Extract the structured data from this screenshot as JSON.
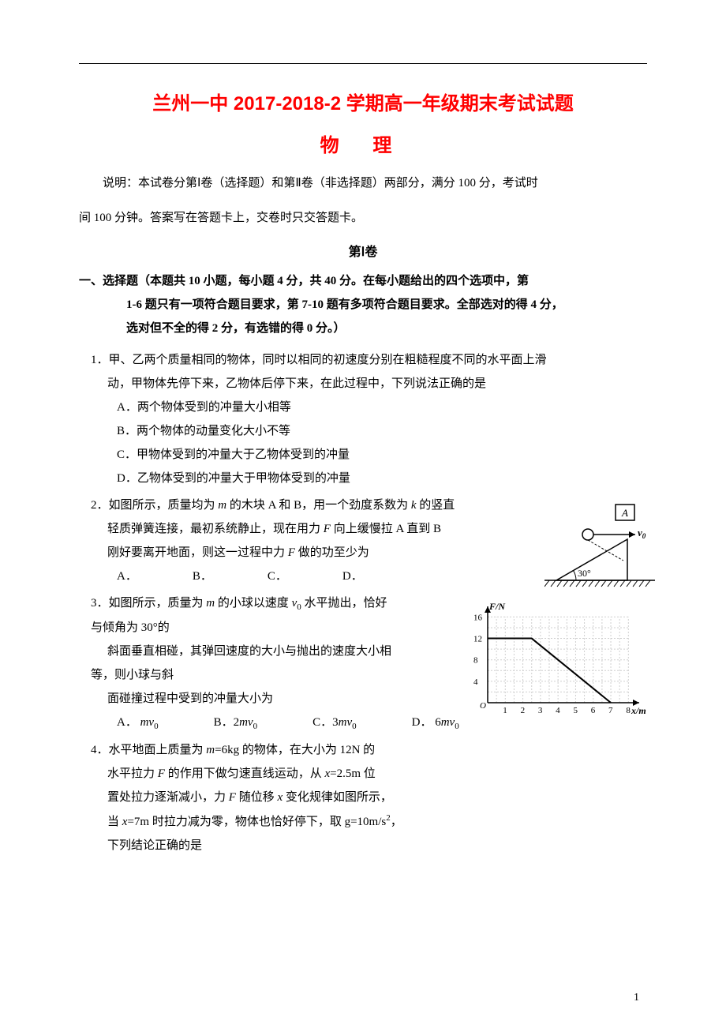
{
  "header": {
    "title": "兰州一中 2017-2018-2 学期高一年级期末考试试题",
    "subject": "物  理",
    "instructions_l1": "说明：本试卷分第Ⅰ卷（选择题）和第Ⅱ卷（非选择题）两部分，满分 100 分，考试时",
    "instructions_l2": "间 100 分钟。答案写在答题卡上，交卷时只交答题卡。",
    "part1_label": "第Ⅰ卷"
  },
  "section1": {
    "head_l1": "一、选择题（本题共 10 小题，每小题 4 分，共 40 分。在每小题给出的四个选项中，第",
    "head_l2": "1-6 题只有一项符合题目要求，第 7-10 题有多项符合题目要求。全部选对的得 4 分，",
    "head_l3": "选对但不全的得 2 分，有选错的得 0 分。）"
  },
  "q1": {
    "stem_l1": "1．甲、乙两个质量相同的物体，同时以相同的初速度分别在粗糙程度不同的水平面上滑",
    "stem_l2": "动，甲物体先停下来，乙物体后停下来，在此过程中，下列说法正确的是",
    "optA": "A．两个物体受到的冲量大小相等",
    "optB": "B．两个物体的动量变化大小不等",
    "optC": "C．甲物体受到的冲量大于乙物体受到的冲量",
    "optD": "D．乙物体受到的冲量大于甲物体受到的冲量"
  },
  "q2": {
    "stem_l1": "2．如图所示，质量均为 m 的木块 A 和 B，用一个劲度系数为 k 的竖直",
    "stem_l2": "轻质弹簧连接，最初系统静止，现在用力 F 向上缓慢拉 A 直到 B",
    "stem_l3": "刚好要离开地面，则这一过程中力 F 做的功至少为",
    "optA": "A．",
    "optB": "B．",
    "optC": "C．",
    "optD": "D．",
    "figure": {
      "box_label": "A",
      "v_label": "v₀",
      "angle_label": "30°",
      "angle_deg": 30,
      "colors": {
        "stroke": "#000000",
        "fill_none": "none",
        "hatch": "#000000"
      }
    }
  },
  "q3": {
    "stem_l1": "3．如图所示，质量为 m 的小球以速度 v₀ 水平抛出，恰好",
    "stem_l2": "与倾角为 30°的",
    "stem_l3": "斜面垂直相碰，其弹回速度的大小与抛出的速度大小相",
    "stem_l4": "等，则小球与斜",
    "stem_l5": "面碰撞过程中受到的冲量大小为",
    "opts": {
      "A": "A． mv₀",
      "B": "B．2mv₀",
      "C": "C．3mv₀",
      "D": "D． 6mv₀"
    }
  },
  "q4": {
    "stem_l1": "4．水平地面上质量为 m=6kg 的物体，在大小为 12N 的",
    "stem_l2": "水平拉力 F 的作用下做匀速直线运动，从 x=2.5m 位",
    "stem_l3": "置处拉力逐渐减小，力 F 随位移 x 变化规律如图所示，",
    "stem_l4": "当 x=7m 时拉力减为零，物体也恰好停下，取 g=10m/s²，",
    "stem_l5": "下列结论正确的是",
    "figure": {
      "type": "line",
      "x_label": "x/m",
      "y_label": "F/N",
      "x_ticks": [
        1,
        2,
        3,
        4,
        5,
        6,
        7,
        8
      ],
      "y_ticks": [
        4,
        8,
        12,
        16
      ],
      "xlim": [
        0,
        8.3
      ],
      "ylim": [
        0,
        16.5
      ],
      "line_points": [
        [
          0,
          12
        ],
        [
          2.5,
          12
        ],
        [
          7,
          0
        ]
      ],
      "colors": {
        "axis": "#000000",
        "grid": "#cfcfcf",
        "line": "#000000",
        "bg": "#ffffff",
        "tick_text": "#000000"
      },
      "line_width": 2,
      "grid_width": 1,
      "font_size_pt": 10
    }
  },
  "page_number": "1"
}
